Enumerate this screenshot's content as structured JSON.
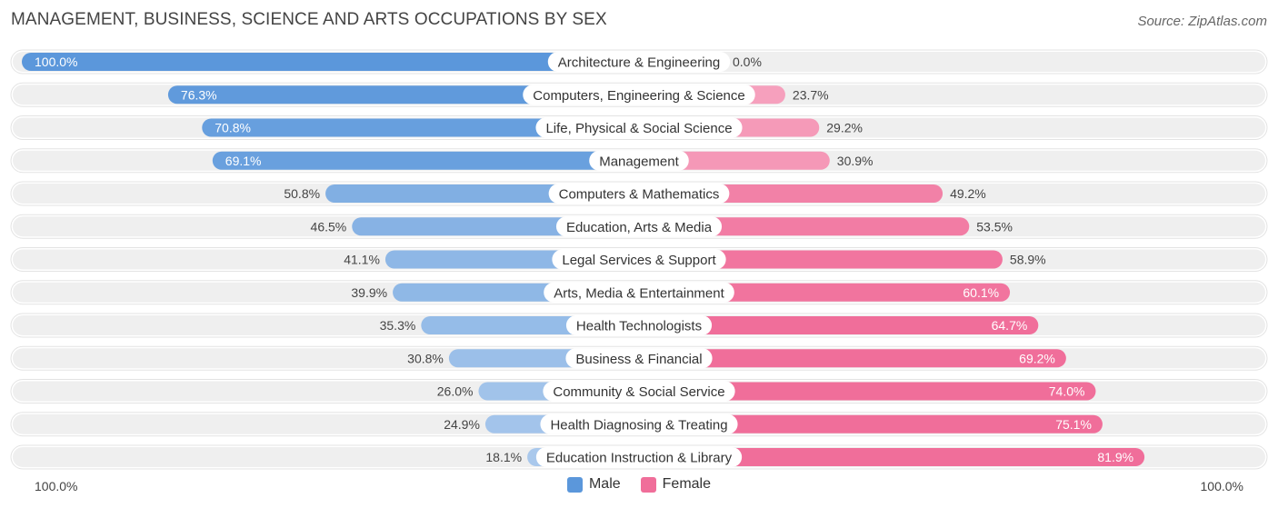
{
  "chart_data": {
    "type": "bar",
    "orientation": "horizontal-diverging",
    "title": "MANAGEMENT, BUSINESS, SCIENCE AND ARTS OCCUPATIONS BY SEX",
    "source": "Source: ZipAtlas.com",
    "categories": [
      "Architecture & Engineering",
      "Computers, Engineering & Science",
      "Life, Physical & Social Science",
      "Management",
      "Computers & Mathematics",
      "Education, Arts & Media",
      "Legal Services & Support",
      "Arts, Media & Entertainment",
      "Health Technologists",
      "Business & Financial",
      "Community & Social Service",
      "Health Diagnosing & Treating",
      "Education Instruction & Library"
    ],
    "series": [
      {
        "name": "Male",
        "values": [
          100.0,
          76.3,
          70.8,
          69.1,
          50.8,
          46.5,
          41.1,
          39.9,
          35.3,
          30.8,
          26.0,
          24.9,
          18.1
        ]
      },
      {
        "name": "Female",
        "values": [
          0.0,
          23.7,
          29.2,
          30.9,
          49.2,
          53.5,
          58.9,
          60.1,
          64.7,
          69.2,
          74.0,
          75.1,
          81.9
        ]
      }
    ],
    "xlim": [
      0,
      100
    ],
    "axis_left_label": "100.0%",
    "axis_right_label": "100.0%",
    "legend": [
      "Male",
      "Female"
    ],
    "legend_position": "bottom-center"
  },
  "colors": {
    "male_strong": "#5b97db",
    "male_light": "#a9c8ec",
    "female_strong": "#f06e9a",
    "female_light": "#f7abc4",
    "track": "#efefef"
  }
}
